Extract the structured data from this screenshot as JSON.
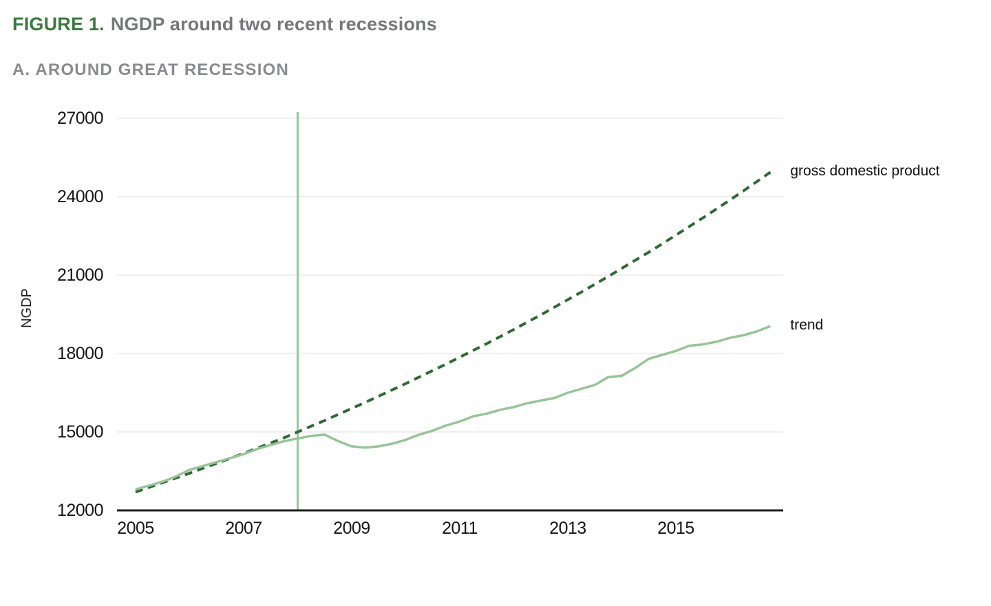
{
  "header": {
    "figure_label": "FIGURE 1.",
    "title": "NGDP around two recent recessions",
    "subtitle": "A. AROUND GREAT RECESSION"
  },
  "colors": {
    "figure_label_green": "#3a7a3e",
    "title_gray": "#76777a",
    "subtitle_gray": "#8a8b8e",
    "gridline": "#e8e8e8",
    "axis": "#1e1e1e",
    "recession_line": "#98c698",
    "dashed_line_green": "#2e6b34",
    "solid_line_green": "#96c596",
    "tick_text": "#151515",
    "annotation_text": "#111111"
  },
  "chart_data": {
    "type": "line",
    "title": "A. AROUND GREAT RECESSION",
    "xlabel": "",
    "ylabel": "NGDP",
    "ylim": [
      12000,
      27000
    ],
    "xlim": [
      2004.65,
      2016.9
    ],
    "y_ticks": [
      12000,
      15000,
      18000,
      21000,
      24000,
      27000
    ],
    "x_ticks": [
      2005,
      2007,
      2009,
      2011,
      2013,
      2015
    ],
    "grid": "horizontal gridlines on, y-only",
    "legend_position": "direct labels at right end of each line",
    "recession_marker_x": 2008,
    "annotations": [
      {
        "text": "gross domestic product",
        "series": 0
      },
      {
        "text": "trend",
        "series": 1
      }
    ],
    "x": [
      2005.0,
      2005.25,
      2005.5,
      2005.75,
      2006.0,
      2006.25,
      2006.5,
      2006.75,
      2007.0,
      2007.25,
      2007.5,
      2007.75,
      2008.0,
      2008.25,
      2008.5,
      2008.75,
      2009.0,
      2009.25,
      2009.5,
      2009.75,
      2010.0,
      2010.25,
      2010.5,
      2010.75,
      2011.0,
      2011.25,
      2011.5,
      2011.75,
      2012.0,
      2012.25,
      2012.5,
      2012.75,
      2013.0,
      2013.25,
      2013.5,
      2013.75,
      2014.0,
      2014.25,
      2014.5,
      2014.75,
      2015.0,
      2015.25,
      2015.5,
      2015.75,
      2016.0,
      2016.25,
      2016.5,
      2016.75
    ],
    "series": [
      {
        "id": "gross-domestic-product",
        "name": "gross domestic product",
        "style": "dashed",
        "color": "#2e6b34",
        "values": [
          12700,
          12880,
          13060,
          13240,
          13420,
          13610,
          13800,
          13990,
          14180,
          14380,
          14580,
          14780,
          15000,
          15220,
          15440,
          15670,
          15900,
          16130,
          16370,
          16610,
          16850,
          17100,
          17350,
          17600,
          17860,
          18120,
          18380,
          18650,
          18920,
          19200,
          19480,
          19770,
          20060,
          20350,
          20650,
          20950,
          21260,
          21570,
          21880,
          22200,
          22530,
          22860,
          23190,
          23530,
          23870,
          24220,
          24580,
          24940
        ]
      },
      {
        "id": "trend",
        "name": "trend",
        "style": "solid",
        "color": "#96c596",
        "values": [
          12800,
          12950,
          13100,
          13300,
          13550,
          13700,
          13850,
          14000,
          14150,
          14350,
          14500,
          14650,
          14750,
          14850,
          14900,
          14650,
          14450,
          14400,
          14450,
          14550,
          14700,
          14900,
          15050,
          15250,
          15400,
          15600,
          15700,
          15850,
          15950,
          16100,
          16200,
          16300,
          16500,
          16650,
          16800,
          17100,
          17150,
          17450,
          17800,
          17950,
          18100,
          18300,
          18350,
          18450,
          18600,
          18700,
          18850,
          19050
        ]
      }
    ]
  }
}
